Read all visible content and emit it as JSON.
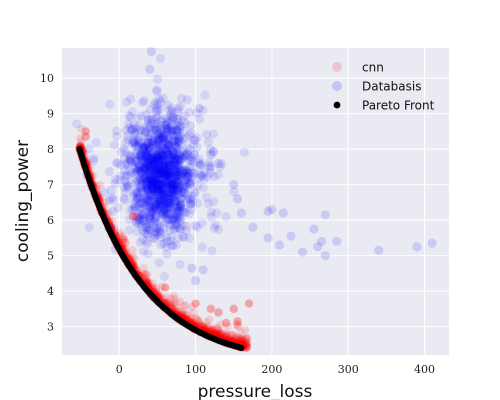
{
  "chart_data": {
    "type": "scatter",
    "title": "",
    "xlabel": "pressure_loss",
    "ylabel": "cooling_power",
    "xlim": [
      -75,
      432
    ],
    "ylim": [
      2.2,
      10.85
    ],
    "xticks": [
      0,
      100,
      200,
      300,
      400
    ],
    "yticks": [
      3,
      4,
      5,
      6,
      7,
      8,
      9,
      10
    ],
    "grid": true,
    "background": "#eaeaf2",
    "grid_color": "#ffffff",
    "legend_position": "top-right",
    "series": [
      {
        "name": "cnn",
        "color": "#ff0000",
        "alpha": 0.12,
        "marker": "circle",
        "front_curve": {
          "x_start": -52,
          "x_end": 160,
          "y_start": 8.0,
          "y_end": 2.4,
          "coef": 2.55,
          "exponent": -0.8
        },
        "count": 1100,
        "scattered_points": [
          [
            -44,
            8.5
          ],
          [
            -44,
            8.35
          ],
          [
            18,
            6.1
          ],
          [
            22,
            6.1
          ],
          [
            170,
            3.65
          ],
          [
            150,
            3.5
          ],
          [
            155,
            3.15
          ],
          [
            160,
            2.6
          ],
          [
            120,
            3.5
          ],
          [
            130,
            3.4
          ],
          [
            140,
            3.1
          ],
          [
            60,
            4.1
          ],
          [
            100,
            3.65
          ]
        ]
      },
      {
        "name": "Databasis",
        "color": "#0000ff",
        "alpha": 0.1,
        "marker": "circle",
        "cluster": {
          "x_center": 55,
          "y_center": 7.3,
          "x_spread": 22,
          "y_spread": 0.85
        },
        "count": 1300,
        "outliers": [
          [
            42,
            10.75
          ],
          [
            40,
            10.25
          ],
          [
            105,
            9.15
          ],
          [
            120,
            7.85
          ],
          [
            130,
            7.6
          ],
          [
            150,
            7.0
          ],
          [
            155,
            6.6
          ],
          [
            160,
            6.2
          ],
          [
            175,
            5.8
          ],
          [
            195,
            6.25
          ],
          [
            200,
            6.3
          ],
          [
            215,
            6.2
          ],
          [
            255,
            5.75
          ],
          [
            260,
            5.25
          ],
          [
            265,
            5.4
          ],
          [
            270,
            5.0
          ],
          [
            270,
            6.15
          ],
          [
            285,
            5.4
          ],
          [
            340,
            5.15
          ],
          [
            390,
            5.25
          ],
          [
            410,
            5.35
          ],
          [
            195,
            5.5
          ],
          [
            210,
            5.3
          ],
          [
            225,
            5.55
          ],
          [
            240,
            5.1
          ],
          [
            100,
            4.3
          ],
          [
            110,
            4.6
          ],
          [
            95,
            4.65
          ]
        ]
      },
      {
        "name": "Pareto Front",
        "color": "#000000",
        "alpha": 1.0,
        "marker": "circle",
        "x_start": -52,
        "x_end": 160,
        "count": 160
      }
    ]
  }
}
